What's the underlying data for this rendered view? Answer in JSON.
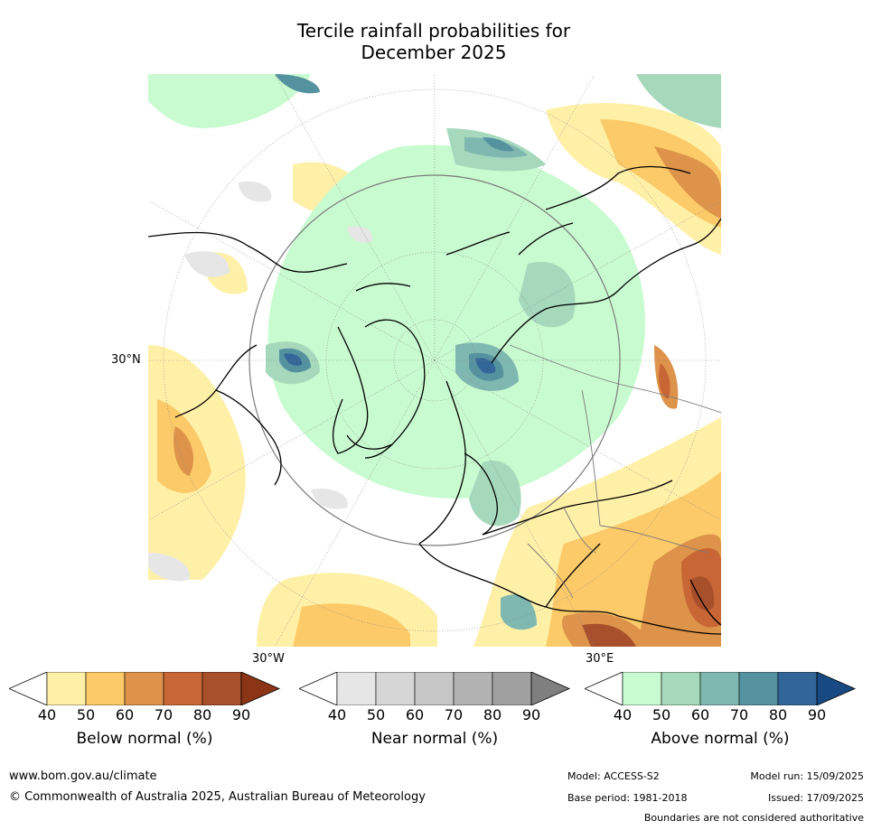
{
  "title_line1": "Tercile rainfall probabilities for",
  "title_line2": "December 2025",
  "map": {
    "lat_label": "30°N",
    "lon_labels": [
      "30°W",
      "30°E"
    ]
  },
  "colorbars": [
    {
      "label": "Below normal (%)",
      "ticks": [
        "40",
        "50",
        "60",
        "70",
        "80",
        "90"
      ],
      "colors": [
        "#fff0a8",
        "#fcca68",
        "#dd934a",
        "#c86635",
        "#a84f2c",
        "#8b3416"
      ]
    },
    {
      "label": "Near normal (%)",
      "ticks": [
        "40",
        "50",
        "60",
        "70",
        "80",
        "90"
      ],
      "colors": [
        "#e6e6e6",
        "#d6d6d6",
        "#c6c6c6",
        "#b2b2b2",
        "#a0a0a0",
        "#7f7f7f"
      ]
    },
    {
      "label": "Above normal (%)",
      "ticks": [
        "40",
        "50",
        "60",
        "70",
        "80",
        "90"
      ],
      "colors": [
        "#c9fbd0",
        "#a6d8bc",
        "#7fb8b0",
        "#5592a0",
        "#336698",
        "#174a82"
      ]
    }
  ],
  "footer": {
    "url": "www.bom.gov.au/climate",
    "copyright": "© Commonwealth of Australia 2025, Australian Bureau of Meteorology",
    "model": "Model: ACCESS-S2",
    "base_period": "Base period: 1981-2018",
    "model_run": "Model run: 15/09/2025",
    "issued": "Issued: 17/09/2025",
    "disclaimer": "Boundaries are not considered authoritative"
  }
}
